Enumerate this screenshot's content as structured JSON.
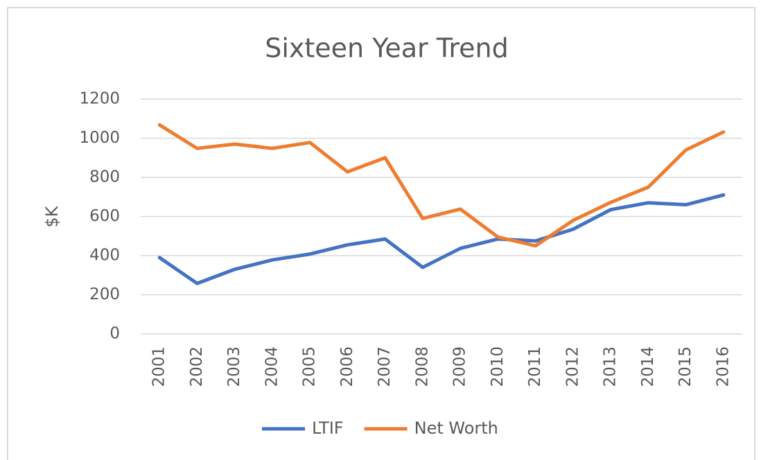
{
  "chart_data": {
    "type": "line",
    "title": "Sixteen Year Trend",
    "y_label": "$K",
    "categories": [
      "2001",
      "2002",
      "2003",
      "2004",
      "2005",
      "2006",
      "2007",
      "2008",
      "2009",
      "2010",
      "2011",
      "2012",
      "2013",
      "2014",
      "2015",
      "2016"
    ],
    "series": [
      {
        "name": "LTIF",
        "color": "#4472c4",
        "values": [
          390,
          258,
          330,
          378,
          408,
          455,
          485,
          340,
          437,
          485,
          475,
          535,
          635,
          670,
          660,
          710
        ]
      },
      {
        "name": "Net Worth",
        "color": "#ed7d31",
        "values": [
          1068,
          948,
          970,
          948,
          978,
          828,
          900,
          590,
          638,
          495,
          450,
          580,
          672,
          750,
          940,
          1032
        ]
      }
    ],
    "ylim": [
      0,
      1200
    ],
    "yticks": [
      0,
      200,
      400,
      600,
      800,
      1000,
      1200
    ],
    "grid": true,
    "legend": "bottom"
  }
}
